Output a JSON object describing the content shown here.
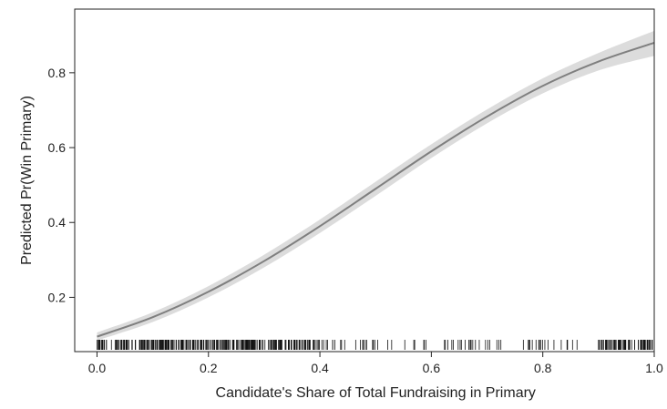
{
  "chart_data": {
    "type": "line",
    "title": "",
    "xlabel": "Candidate's Share of Total Fundraising in Primary",
    "ylabel": "Predicted Pr(Win Primary)",
    "xlim": [
      -0.04,
      1.0
    ],
    "ylim": [
      0.055,
      0.97
    ],
    "x_ticks": [
      0.0,
      0.2,
      0.4,
      0.6,
      0.8,
      1.0
    ],
    "x_tick_labels": [
      "0.0",
      "0.2",
      "0.4",
      "0.6",
      "0.8",
      "1.0"
    ],
    "y_ticks": [
      0.2,
      0.4,
      0.6,
      0.8
    ],
    "y_tick_labels": [
      "0.2",
      "0.4",
      "0.6",
      "0.8"
    ],
    "grid": false,
    "legend": "none",
    "series": [
      {
        "x": [
          0.0,
          0.1,
          0.2,
          0.3,
          0.4,
          0.5,
          0.6,
          0.7,
          0.8,
          0.9,
          1.0
        ],
        "values": [
          0.095,
          0.147,
          0.215,
          0.297,
          0.39,
          0.49,
          0.59,
          0.683,
          0.765,
          0.83,
          0.88
        ],
        "lower": [
          0.085,
          0.134,
          0.2,
          0.28,
          0.372,
          0.471,
          0.572,
          0.665,
          0.745,
          0.806,
          0.845
        ],
        "upper": [
          0.106,
          0.16,
          0.23,
          0.314,
          0.408,
          0.509,
          0.609,
          0.702,
          0.785,
          0.853,
          0.912
        ]
      }
    ],
    "rug_note_values": "observed fundraising shares shown as rug marks along x axis",
    "colors": {
      "line": "#7f7f7f",
      "band": "#dcdcdc",
      "rug": "#111111",
      "axis": "#222222"
    }
  }
}
